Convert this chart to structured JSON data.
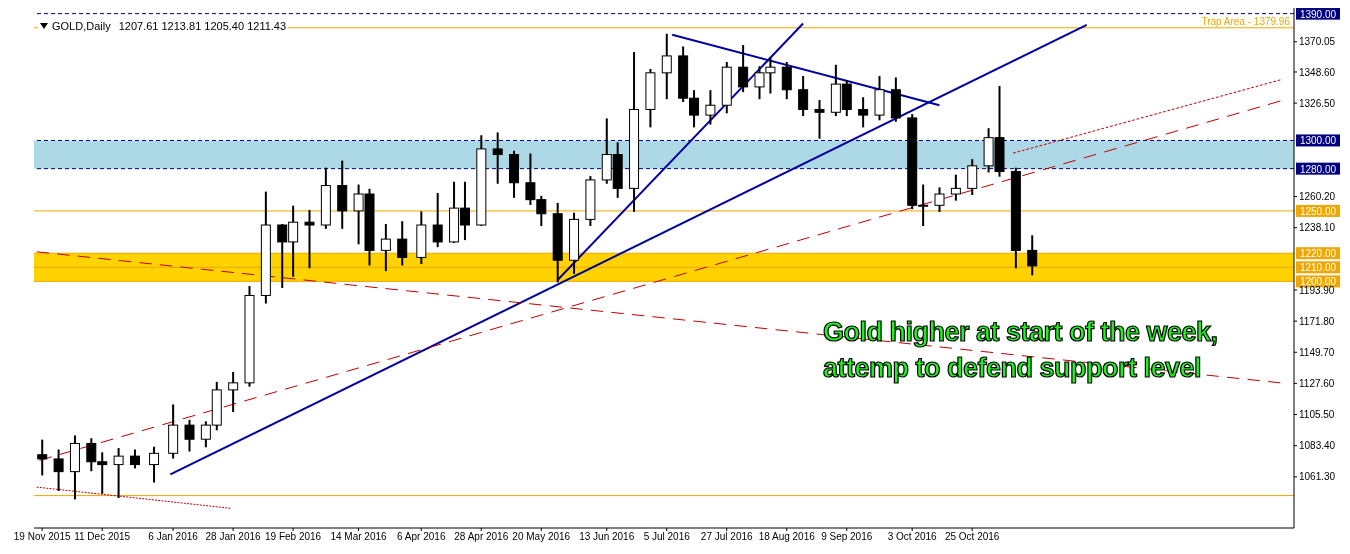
{
  "chart_data": {
    "type": "candlestick",
    "title": "GOLD,Daily",
    "subtitle": "1207.61 1213.81 1205.40 1211.43",
    "annotations": [
      "Gold higher at start of the week,",
      "attemp to defend support level"
    ],
    "color": "#000000",
    "x": [
      "2015-11-19",
      "2015-11-25",
      "2015-12-01",
      "2015-12-07",
      "2015-12-11",
      "2015-12-17",
      "2015-12-23",
      "2015-12-30",
      "2016-01-06",
      "2016-01-12",
      "2016-01-18",
      "2016-01-22",
      "2016-01-28",
      "2016-02-03",
      "2016-02-09",
      "2016-02-15",
      "2016-02-19",
      "2016-02-25",
      "2016-03-02",
      "2016-03-08",
      "2016-03-14",
      "2016-03-18",
      "2016-03-24",
      "2016-03-30",
      "2016-04-06",
      "2016-04-12",
      "2016-04-18",
      "2016-04-22",
      "2016-04-28",
      "2016-05-04",
      "2016-05-10",
      "2016-05-16",
      "2016-05-20",
      "2016-05-26",
      "2016-06-01",
      "2016-06-07",
      "2016-06-13",
      "2016-06-17",
      "2016-06-23",
      "2016-06-29",
      "2016-07-05",
      "2016-07-11",
      "2016-07-15",
      "2016-07-21",
      "2016-07-27",
      "2016-08-02",
      "2016-08-08",
      "2016-08-12",
      "2016-08-18",
      "2016-08-24",
      "2016-08-30",
      "2016-09-05",
      "2016-09-09",
      "2016-09-15",
      "2016-09-21",
      "2016-09-27",
      "2016-10-03",
      "2016-10-07",
      "2016-10-13",
      "2016-10-19",
      "2016-10-25",
      "2016-10-31",
      "2016-11-04",
      "2016-11-10",
      "2016-11-16"
    ],
    "ohlc": [
      [
        1077,
        1087,
        1063,
        1074
      ],
      [
        1074,
        1080,
        1052,
        1065
      ],
      [
        1065,
        1090,
        1046,
        1085
      ],
      [
        1085,
        1088,
        1066,
        1072
      ],
      [
        1072,
        1078,
        1050,
        1070
      ],
      [
        1070,
        1081,
        1047,
        1076
      ],
      [
        1076,
        1080,
        1068,
        1070
      ],
      [
        1070,
        1082,
        1058,
        1078
      ],
      [
        1078,
        1112,
        1075,
        1098
      ],
      [
        1098,
        1101,
        1080,
        1088
      ],
      [
        1088,
        1100,
        1083,
        1098
      ],
      [
        1098,
        1128,
        1095,
        1123
      ],
      [
        1123,
        1135,
        1108,
        1128
      ],
      [
        1128,
        1196,
        1126,
        1190
      ],
      [
        1190,
        1263,
        1185,
        1240
      ],
      [
        1240,
        1240,
        1196,
        1228
      ],
      [
        1228,
        1253,
        1204,
        1242
      ],
      [
        1242,
        1250,
        1210,
        1240
      ],
      [
        1240,
        1280,
        1238,
        1268
      ],
      [
        1268,
        1285,
        1238,
        1250
      ],
      [
        1250,
        1268,
        1227,
        1262
      ],
      [
        1262,
        1265,
        1212,
        1222
      ],
      [
        1222,
        1240,
        1208,
        1230
      ],
      [
        1230,
        1242,
        1212,
        1217
      ],
      [
        1217,
        1249,
        1213,
        1240
      ],
      [
        1240,
        1262,
        1225,
        1228
      ],
      [
        1228,
        1270,
        1228,
        1252
      ],
      [
        1252,
        1270,
        1230,
        1240
      ],
      [
        1240,
        1303,
        1240,
        1294
      ],
      [
        1294,
        1305,
        1270,
        1290
      ],
      [
        1290,
        1292,
        1260,
        1270
      ],
      [
        1270,
        1290,
        1255,
        1258
      ],
      [
        1258,
        1260,
        1240,
        1248
      ],
      [
        1248,
        1255,
        1200,
        1215
      ],
      [
        1215,
        1248,
        1206,
        1244
      ],
      [
        1244,
        1274,
        1240,
        1272
      ],
      [
        1272,
        1315,
        1270,
        1290
      ],
      [
        1290,
        1298,
        1260,
        1266
      ],
      [
        1266,
        1362,
        1250,
        1322
      ],
      [
        1322,
        1350,
        1310,
        1348
      ],
      [
        1348,
        1375,
        1330,
        1360
      ],
      [
        1360,
        1366,
        1328,
        1330
      ],
      [
        1330,
        1335,
        1310,
        1318
      ],
      [
        1318,
        1335,
        1312,
        1325
      ],
      [
        1325,
        1355,
        1320,
        1352
      ],
      [
        1352,
        1367,
        1335,
        1338
      ],
      [
        1338,
        1352,
        1330,
        1348
      ],
      [
        1348,
        1358,
        1334,
        1352
      ],
      [
        1352,
        1355,
        1330,
        1336
      ],
      [
        1336,
        1345,
        1318,
        1322
      ],
      [
        1322,
        1328,
        1302,
        1320
      ],
      [
        1320,
        1353,
        1318,
        1340
      ],
      [
        1340,
        1342,
        1318,
        1322
      ],
      [
        1322,
        1330,
        1310,
        1318
      ],
      [
        1318,
        1345,
        1315,
        1336
      ],
      [
        1336,
        1344,
        1314,
        1316
      ],
      [
        1316,
        1318,
        1252,
        1254
      ],
      [
        1254,
        1268,
        1240,
        1254
      ],
      [
        1254,
        1266,
        1250,
        1262
      ],
      [
        1262,
        1275,
        1258,
        1266
      ],
      [
        1266,
        1286,
        1262,
        1282
      ],
      [
        1282,
        1308,
        1278,
        1302
      ],
      [
        1302,
        1338,
        1275,
        1278
      ],
      [
        1278,
        1280,
        1210,
        1222
      ],
      [
        1222,
        1232,
        1205,
        1211
      ]
    ],
    "series": [
      {
        "type": "line",
        "color": "#0000a0",
        "line_style": "solid",
        "x": [
          "2016-01-05",
          "2016-12-06"
        ],
        "values": [
          1063,
          1382
        ]
      },
      {
        "type": "line",
        "color": "#0000a0",
        "line_style": "solid",
        "x": [
          "2016-05-26",
          "2016-08-24"
        ],
        "values": [
          1201,
          1383
        ]
      },
      {
        "type": "line",
        "color": "#0000a0",
        "line_style": "solid",
        "x": [
          "2016-07-07",
          "2016-10-13"
        ],
        "values": [
          1375,
          1325
        ]
      },
      {
        "type": "line",
        "color": "#c00000",
        "line_style": "dashed",
        "x": [
          "2015-11-17",
          "2017-02-15"
        ],
        "values": [
          1221,
          1128
        ]
      },
      {
        "type": "line",
        "color": "#c00000",
        "line_style": "dashed",
        "x": [
          "2015-11-17",
          "2016-01-27"
        ],
        "values": [
          1054,
          1039
        ]
      },
      {
        "type": "line",
        "color": "#c00000",
        "line_style": "dashed",
        "x": [
          "2015-11-18",
          "2017-02-15"
        ],
        "values": [
          1073,
          1328
        ]
      },
      {
        "type": "line",
        "color": "#c00000",
        "line_style": "dashed",
        "x": [
          "2016-11-09",
          "2017-02-15"
        ],
        "values": [
          1291,
          1343
        ]
      }
    ],
    "xlim": [
      "2015-11-16",
      "2017-02-20"
    ],
    "xticks": [
      {
        "value": "2015-11-19",
        "label": "19 Nov 2015"
      },
      {
        "value": "2015-12-11",
        "label": "11 Dec 2015"
      },
      {
        "value": "2016-01-06",
        "label": "6 Jan 2016"
      },
      {
        "value": "2016-01-28",
        "label": "28 Jan 2016"
      },
      {
        "value": "2016-02-19",
        "label": "19 Feb 2016"
      },
      {
        "value": "2016-03-14",
        "label": "14 Mar 2016"
      },
      {
        "value": "2016-04-06",
        "label": "6 Apr 2016"
      },
      {
        "value": "2016-04-28",
        "label": "28 Apr 2016"
      },
      {
        "value": "2016-05-20",
        "label": "20 May 2016"
      },
      {
        "value": "2016-06-13",
        "label": "13 Jun 2016"
      },
      {
        "value": "2016-07-05",
        "label": "5 Jul 2016"
      },
      {
        "value": "2016-07-27",
        "label": "27 Jul 2016"
      },
      {
        "value": "2016-08-18",
        "label": "18 Aug 2016"
      },
      {
        "value": "2016-09-09",
        "label": "9 Sep 2016"
      },
      {
        "value": "2016-10-03",
        "label": "3 Oct 2016"
      },
      {
        "value": "2016-10-25",
        "label": "25 Oct 2016"
      }
    ],
    "ylim": [
      1025,
      1394
    ],
    "yticks": [
      {
        "value": 1370.05,
        "label": "1370.05"
      },
      {
        "value": 1348.6,
        "label": "1348.60"
      },
      {
        "value": 1326.5,
        "label": "1326.50"
      },
      {
        "value": 1260.2,
        "label": "1260.20"
      },
      {
        "value": 1238.1,
        "label": "1238.10"
      },
      {
        "value": 1193.9,
        "label": "1193.90"
      },
      {
        "value": 1171.8,
        "label": "1171.80"
      },
      {
        "value": 1149.7,
        "label": "1149.70"
      },
      {
        "value": 1127.6,
        "label": "1127.60"
      },
      {
        "value": 1105.5,
        "label": "1105.50"
      },
      {
        "value": 1083.4,
        "label": "1083.40"
      },
      {
        "value": 1061.3,
        "label": "1061.30"
      }
    ],
    "bands": [
      {
        "axis": "y",
        "from": 1280,
        "to": 1300,
        "color": "#add8e6"
      },
      {
        "axis": "y",
        "from": 1200,
        "to": 1220,
        "color": "#ffd200"
      }
    ],
    "ref_lines": [
      {
        "axis": "y",
        "value": 1390,
        "label": "1390.00",
        "color": "#000080",
        "line_style": "dashed"
      },
      {
        "axis": "y",
        "value": 1379.96,
        "label": "Trap Area - 1379.96",
        "color": "#f0a800",
        "line_style": "solid"
      },
      {
        "axis": "y",
        "value": 1300,
        "label": "1300.00",
        "color": "#000080",
        "line_style": "dashed"
      },
      {
        "axis": "y",
        "value": 1280,
        "label": "1280.00",
        "color": "#000080",
        "line_style": "dashed"
      },
      {
        "axis": "y",
        "value": 1250,
        "label": "1250.00",
        "color": "#f0a800",
        "line_style": "solid"
      },
      {
        "axis": "y",
        "value": 1220,
        "label": "1220.00",
        "color": "#f0a800",
        "line_style": "solid"
      },
      {
        "axis": "y",
        "value": 1210,
        "label": "1210.00",
        "color": "#f0a800",
        "line_style": "solid"
      },
      {
        "axis": "y",
        "value": 1200,
        "label": "1200.00",
        "color": "#f0a800",
        "line_style": "solid"
      },
      {
        "axis": "y",
        "value": 1048,
        "color": "#f0a800",
        "line_style": "solid"
      }
    ],
    "grid": false,
    "legend": false
  }
}
